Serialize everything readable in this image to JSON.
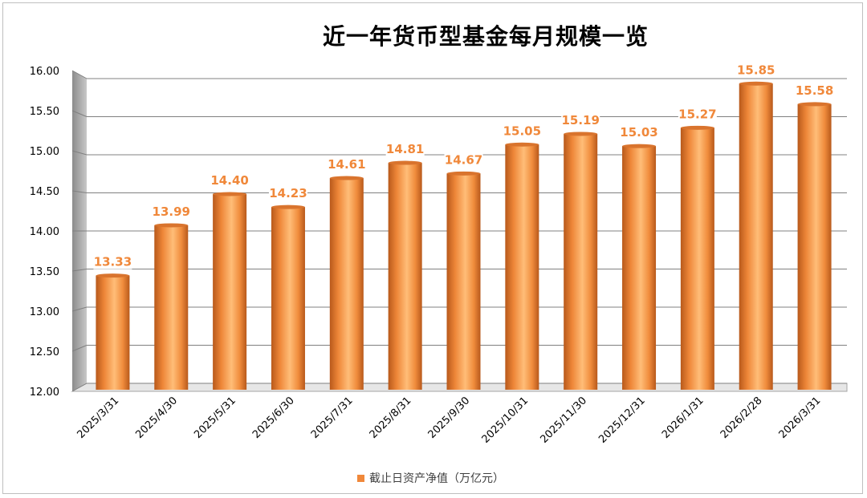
{
  "chart_data": {
    "type": "bar",
    "title": "近一年货币型基金每月规模一览",
    "categories": [
      "2025/3/31",
      "2025/4/30",
      "2025/5/31",
      "2025/6/30",
      "2025/7/31",
      "2025/8/31",
      "2025/9/30",
      "2025/10/31",
      "2025/11/30",
      "2025/12/31",
      "2026/1/31",
      "2026/2/28",
      "2026/3/31"
    ],
    "series": [
      {
        "name": "截止日资产净值（万亿元）",
        "values": [
          13.33,
          13.99,
          14.4,
          14.23,
          14.61,
          14.81,
          14.67,
          15.05,
          15.19,
          15.03,
          15.27,
          15.85,
          15.58
        ]
      }
    ],
    "value_labels": [
      "13.33",
      "13.99",
      "14.40",
      "14.23",
      "14.61",
      "14.81",
      "14.67",
      "15.05",
      "15.19",
      "15.03",
      "15.27",
      "15.85",
      "15.58"
    ],
    "ylim": [
      12,
      16
    ],
    "yticks": [
      "12.00",
      "12.50",
      "13.00",
      "13.50",
      "14.00",
      "14.50",
      "15.00",
      "15.50",
      "16.00"
    ],
    "grid": true,
    "legend_position": "bottom",
    "colors": {
      "bar": "#f0883a",
      "bar_dark": "#b85a1a",
      "bar_light": "#ffb870",
      "label": "#f0883a",
      "grid": "#808080",
      "wall": "#a6a6a6"
    }
  }
}
